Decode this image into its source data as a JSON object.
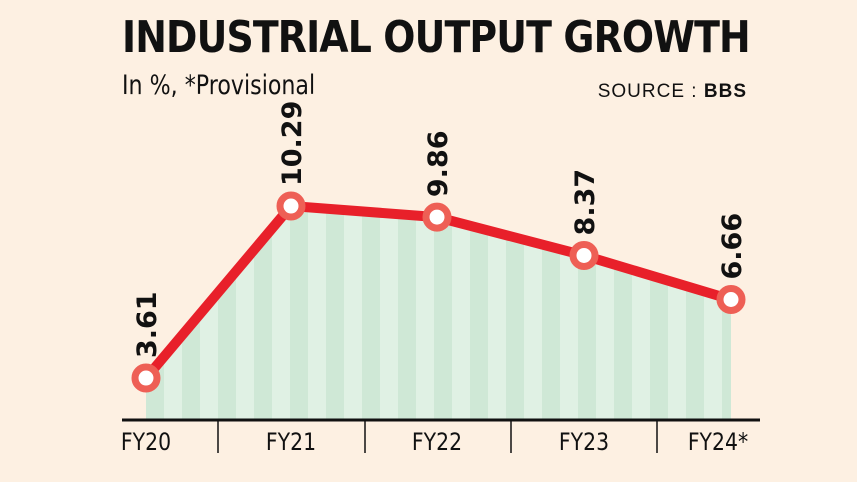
{
  "chart_data": {
    "type": "line",
    "title": "INDUSTRIAL OUTPUT GROWTH",
    "subtitle": "In %, *Provisional",
    "source_label": "SOURCE :",
    "source_value": "BBS",
    "categories": [
      "FY20",
      "FY21",
      "FY22",
      "FY23",
      "FY24*"
    ],
    "values": [
      3.61,
      10.29,
      9.86,
      8.37,
      6.66
    ],
    "data_labels": [
      "3.61",
      "10.29",
      "9.86",
      "8.37",
      "6.66"
    ],
    "xlabel": "",
    "ylabel": "",
    "ylim": [
      2,
      11
    ],
    "grid": false,
    "area_fill": true,
    "colors": {
      "line": "#e8202a",
      "marker": "#ee5f55",
      "marker_center": "#ffffff",
      "fill_stripe_dark": "#cfe8d6",
      "fill_stripe_light": "#e0f1e4",
      "background": "#fdf0e2",
      "axis": "#111111"
    }
  }
}
